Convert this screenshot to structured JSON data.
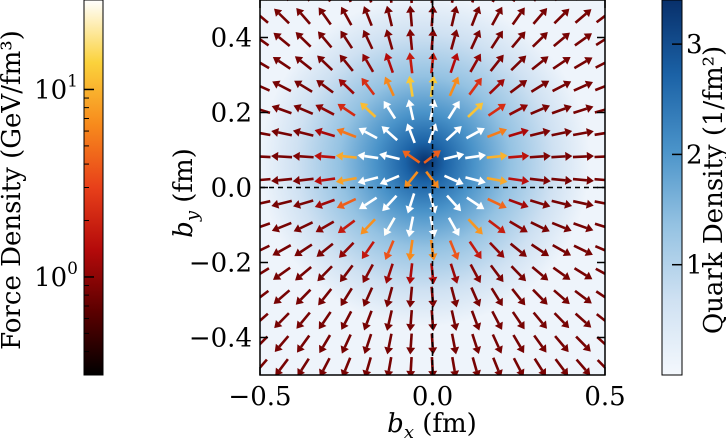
{
  "chart_data": {
    "type": "quiver",
    "title": "",
    "xlabel": "b_x (fm)",
    "ylabel": "b_y (fm)",
    "xlabel_parts": {
      "base": "b",
      "sub": "x",
      "unit": " (fm)"
    },
    "ylabel_parts": {
      "base": "b",
      "sub": "y",
      "unit": " (fm)"
    },
    "xlim": [
      -0.5,
      0.5
    ],
    "ylim": [
      -0.5,
      0.5
    ],
    "xticks": [
      -0.5,
      0.0,
      0.5
    ],
    "xtick_labels": [
      "−0.5",
      "0.0",
      "0.5"
    ],
    "yticks": [
      -0.4,
      -0.2,
      0.0,
      0.2,
      0.4
    ],
    "ytick_labels": [
      "−0.4",
      "−0.2",
      "0.0",
      "0.2",
      "0.4"
    ],
    "reference_lines": {
      "x": 0.0,
      "y": 0.0,
      "style": "dashed"
    },
    "background_field": {
      "name": "Quark Density",
      "unit": "(1/fm²)",
      "peak_location": [
        -0.03,
        0.06
      ],
      "peak_value": 3.4,
      "width_fm": [
        0.11,
        0.11
      ]
    },
    "quiver_grid": {
      "x_start": -0.5,
      "x_step": 0.0625,
      "y_start": -0.48,
      "y_step": 0.0625,
      "count": 17
    },
    "force_colorbar": {
      "label": "Force Density (GeV/fm³)",
      "scale": "log",
      "range": [
        0.3,
        30
      ],
      "tick_labels": [
        {
          "base": "10",
          "exp": "1",
          "value": 10
        },
        {
          "base": "10",
          "exp": "0",
          "value": 1
        }
      ],
      "colors": [
        "#000000",
        "#5a0000",
        "#b40a0a",
        "#e8401a",
        "#f78a1c",
        "#fbd23c",
        "#ffffff"
      ]
    },
    "density_colorbar": {
      "label": "Quark Density (1/fm²)",
      "range": [
        0,
        3.4
      ],
      "ticks": [
        1,
        2,
        3
      ],
      "tick_labels": [
        "1",
        "2",
        "3"
      ],
      "colors": [
        "#f4f8fd",
        "#cfe1f2",
        "#94c2e2",
        "#4a93c9",
        "#1b62a6",
        "#08306b"
      ]
    }
  }
}
